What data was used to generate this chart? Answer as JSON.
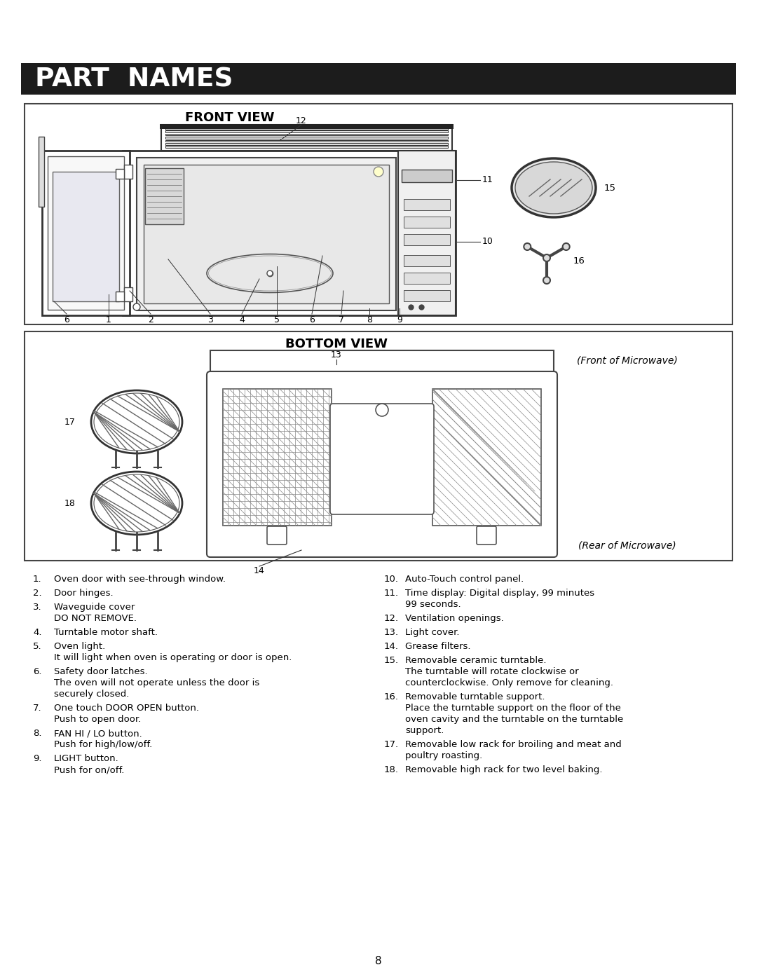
{
  "bg_color": "#ffffff",
  "header_bg": "#1c1c1c",
  "header_text": "PART  NAMES",
  "header_text_color": "#ffffff",
  "front_view_title": "FRONT VIEW",
  "bottom_view_title": "BOTTOM VIEW",
  "front_of_microwave": "(Front of Microwave)",
  "rear_of_microwave": "(Rear of Microwave)",
  "page_number": "8",
  "items_left": [
    [
      "1.",
      "Oven door with see-through window."
    ],
    [
      "2.",
      "Door hinges."
    ],
    [
      "3.",
      "Waveguide cover\n     DO NOT REMOVE."
    ],
    [
      "4.",
      "Turntable motor shaft."
    ],
    [
      "5.",
      "Oven light.\n     It will light when oven is operating or door is open."
    ],
    [
      "6.",
      "Safety door latches.\n     The oven will not operate unless the door is\n     securely closed."
    ],
    [
      "7.",
      "One touch DOOR OPEN button.\n     Push to open door."
    ],
    [
      "8.",
      "FAN HI / LO button.\n     Push for high/low/off."
    ],
    [
      "9.",
      "LIGHT button.\n     Push for on/off."
    ]
  ],
  "items_right": [
    [
      "10.",
      "Auto-Touch control panel."
    ],
    [
      "11.",
      "Time display: Digital display, 99 minutes\n       99 seconds."
    ],
    [
      "12.",
      "Ventilation openings."
    ],
    [
      "13.",
      "Light cover."
    ],
    [
      "14.",
      "Grease filters."
    ],
    [
      "15.",
      "Removable ceramic turntable.\n       The turntable will rotate clockwise or\n       counterclockwise. Only remove for cleaning."
    ],
    [
      "16.",
      "Removable turntable support.\n       Place the turntable support on the floor of the\n       oven cavity and the turntable on the turntable\n       support."
    ],
    [
      "17.",
      "Removable low rack for broiling and meat and\n       poultry roasting."
    ],
    [
      "18.",
      "Removable high rack for two level baking."
    ]
  ]
}
